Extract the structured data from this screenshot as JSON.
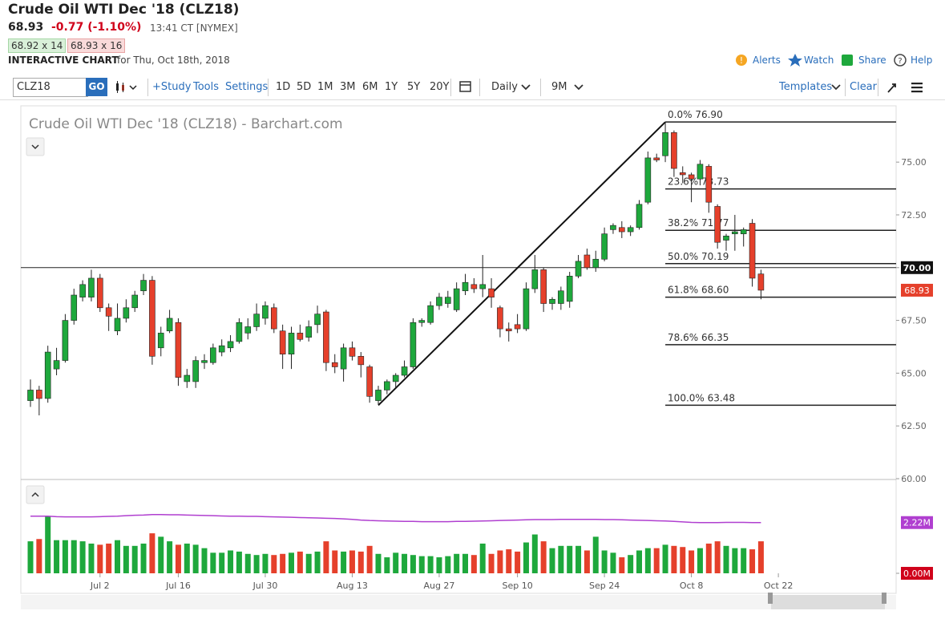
{
  "header": {
    "title": "Crude Oil WTI Dec '18 (CLZ18)",
    "last": "68.93",
    "change": "-0.77 (-1.10%)",
    "time": "13:41 CT [NYMEX]",
    "bid": "68.92 x 14",
    "ask": "68.93 x 16",
    "section": "INTERACTIVE CHART",
    "date": "for Thu, Oct 18th, 2018",
    "actions": [
      "Alerts",
      "Watch",
      "Share",
      "Help"
    ]
  },
  "toolbar": {
    "symbol": "CLZ18",
    "go": "GO",
    "links": [
      "+Study",
      "Tools",
      "Settings"
    ],
    "periods": [
      "1D",
      "5D",
      "1M",
      "3M",
      "6M",
      "1Y",
      "5Y",
      "20Y"
    ],
    "interval": "Daily",
    "range": "9M",
    "templates": "Templates",
    "clear": "Clear"
  },
  "chart_data": {
    "type": "candlestick",
    "title": "Crude Oil WTI Dec '18 (CLZ18) - Barchart.com",
    "up_color": "#1ea83c",
    "down_color": "#e5402b",
    "candles": [
      [
        63.7,
        64.7,
        63.4,
        64.2
      ],
      [
        64.2,
        64.4,
        63.0,
        63.8
      ],
      [
        63.8,
        66.3,
        63.6,
        66.0
      ],
      [
        65.2,
        66.2,
        64.9,
        65.6
      ],
      [
        65.6,
        67.8,
        65.5,
        67.5
      ],
      [
        67.5,
        69.0,
        67.3,
        68.7
      ],
      [
        68.6,
        69.4,
        68.4,
        69.2
      ],
      [
        68.6,
        69.9,
        68.4,
        69.5
      ],
      [
        69.5,
        69.7,
        67.9,
        68.1
      ],
      [
        68.1,
        68.3,
        67.0,
        67.7
      ],
      [
        67.0,
        68.3,
        66.8,
        67.6
      ],
      [
        67.6,
        68.5,
        67.4,
        68.1
      ],
      [
        68.1,
        68.9,
        67.9,
        68.7
      ],
      [
        68.9,
        69.7,
        68.7,
        69.4
      ],
      [
        69.4,
        69.6,
        65.4,
        65.8
      ],
      [
        66.2,
        67.2,
        65.8,
        66.9
      ],
      [
        67.0,
        68.0,
        66.9,
        67.6
      ],
      [
        67.4,
        67.6,
        64.4,
        64.8
      ],
      [
        64.6,
        65.2,
        64.3,
        64.9
      ],
      [
        64.6,
        65.8,
        64.3,
        65.6
      ],
      [
        65.5,
        65.9,
        65.2,
        65.6
      ],
      [
        65.5,
        66.4,
        65.4,
        66.2
      ],
      [
        66.0,
        66.6,
        65.8,
        66.3
      ],
      [
        66.2,
        66.8,
        66.0,
        66.5
      ],
      [
        66.5,
        67.6,
        66.4,
        67.4
      ],
      [
        66.9,
        67.6,
        66.6,
        67.2
      ],
      [
        67.2,
        68.3,
        67.0,
        67.8
      ],
      [
        67.6,
        68.4,
        67.3,
        68.2
      ],
      [
        68.1,
        68.3,
        66.9,
        67.1
      ],
      [
        67.0,
        67.3,
        65.2,
        65.9
      ],
      [
        65.9,
        67.2,
        65.2,
        66.9
      ],
      [
        66.9,
        67.3,
        66.5,
        66.6
      ],
      [
        66.7,
        67.5,
        66.5,
        67.2
      ],
      [
        67.3,
        68.2,
        66.9,
        67.8
      ],
      [
        67.9,
        68.0,
        65.1,
        65.5
      ],
      [
        65.5,
        65.9,
        65.0,
        65.3
      ],
      [
        65.2,
        66.4,
        64.6,
        66.2
      ],
      [
        66.2,
        66.5,
        65.6,
        65.8
      ],
      [
        65.8,
        66.0,
        64.8,
        65.4
      ],
      [
        65.3,
        65.4,
        63.6,
        63.9
      ],
      [
        63.7,
        64.4,
        63.5,
        64.2
      ],
      [
        64.2,
        64.7,
        64.0,
        64.6
      ],
      [
        64.6,
        65.0,
        64.3,
        64.9
      ],
      [
        64.9,
        65.6,
        64.8,
        65.3
      ],
      [
        65.3,
        67.6,
        65.2,
        67.4
      ],
      [
        67.4,
        67.6,
        67.2,
        67.5
      ],
      [
        67.4,
        68.4,
        67.3,
        68.2
      ],
      [
        68.2,
        68.8,
        68.0,
        68.6
      ],
      [
        68.3,
        68.9,
        68.1,
        68.6
      ],
      [
        68.0,
        69.3,
        67.9,
        69.0
      ],
      [
        68.9,
        69.7,
        68.7,
        69.3
      ],
      [
        69.2,
        69.5,
        68.8,
        69.0
      ],
      [
        69.0,
        70.6,
        68.6,
        69.2
      ],
      [
        69.0,
        69.5,
        68.1,
        68.6
      ],
      [
        68.1,
        68.2,
        66.7,
        67.1
      ],
      [
        67.1,
        67.4,
        66.5,
        67.0
      ],
      [
        67.3,
        67.8,
        66.9,
        67.1
      ],
      [
        67.1,
        69.3,
        67.0,
        69.0
      ],
      [
        69.0,
        70.6,
        68.8,
        69.9
      ],
      [
        69.9,
        70.0,
        67.9,
        68.3
      ],
      [
        68.3,
        68.6,
        68.0,
        68.5
      ],
      [
        68.3,
        69.1,
        68.0,
        68.9
      ],
      [
        68.4,
        69.8,
        68.1,
        69.6
      ],
      [
        69.6,
        70.6,
        69.5,
        70.3
      ],
      [
        70.6,
        70.9,
        69.9,
        70.0
      ],
      [
        70.0,
        70.8,
        69.8,
        70.4
      ],
      [
        70.4,
        71.9,
        70.3,
        71.6
      ],
      [
        71.8,
        72.1,
        71.6,
        72.0
      ],
      [
        71.9,
        72.2,
        71.4,
        71.7
      ],
      [
        71.7,
        72.0,
        71.5,
        71.9
      ],
      [
        71.9,
        73.2,
        71.8,
        73.0
      ],
      [
        73.1,
        75.5,
        73.0,
        75.2
      ],
      [
        75.2,
        75.4,
        75.0,
        75.1
      ],
      [
        75.3,
        76.9,
        75.0,
        76.4
      ],
      [
        76.4,
        76.5,
        74.3,
        74.7
      ],
      [
        74.5,
        74.8,
        74.0,
        74.4
      ],
      [
        74.4,
        74.5,
        73.1,
        74.2
      ],
      [
        74.2,
        75.1,
        73.9,
        74.9
      ],
      [
        74.8,
        74.9,
        72.6,
        73.1
      ],
      [
        72.9,
        73.0,
        70.9,
        71.2
      ],
      [
        71.3,
        71.6,
        70.8,
        71.5
      ],
      [
        71.6,
        72.5,
        70.8,
        71.7
      ],
      [
        71.6,
        71.9,
        71.0,
        71.8
      ],
      [
        72.1,
        72.3,
        69.1,
        69.5
      ],
      [
        69.7,
        69.9,
        68.5,
        68.93
      ]
    ],
    "xlim": [
      -1,
      96
    ],
    "xticks": [
      {
        "value": 8,
        "label": "Jul 2"
      },
      {
        "value": 17,
        "label": "Jul 16"
      },
      {
        "value": 27,
        "label": "Jul 30"
      },
      {
        "value": 37,
        "label": "Aug 13"
      },
      {
        "value": 47,
        "label": "Aug 27"
      },
      {
        "value": 56,
        "label": "Sep 10"
      },
      {
        "value": 66,
        "label": "Sep 24"
      },
      {
        "value": 76,
        "label": "Oct 8"
      },
      {
        "value": 86,
        "label": "Oct 22"
      }
    ],
    "ylim": [
      60,
      77.4
    ],
    "yticks": [
      {
        "value": 60,
        "label": "60.00"
      },
      {
        "value": 62.5,
        "label": "62.50"
      },
      {
        "value": 65,
        "label": "65.00"
      },
      {
        "value": 67.5,
        "label": "67.50"
      },
      {
        "value": 70,
        "label": "70.00"
      },
      {
        "value": 72.5,
        "label": "72.50"
      },
      {
        "value": 75,
        "label": "75.00"
      }
    ],
    "hline": {
      "value": 70,
      "label": "70.00"
    },
    "last_price": {
      "value": 68.93,
      "label": "68.93"
    },
    "trendline": {
      "x": [
        40,
        73
      ],
      "y": [
        63.48,
        76.9
      ]
    },
    "fib_start": 73,
    "fib_levels": [
      {
        "value": 76.9,
        "label": "0.0% 76.90"
      },
      {
        "value": 73.73,
        "label": "23.6% 73.73"
      },
      {
        "value": 71.77,
        "label": "38.2% 71.77"
      },
      {
        "value": 70.19,
        "label": "50.0% 70.19"
      },
      {
        "value": 68.6,
        "label": "61.8% 68.60"
      },
      {
        "value": 66.35,
        "label": "78.6% 66.35"
      },
      {
        "value": 63.48,
        "label": "100.0% 63.48"
      }
    ],
    "volume": [
      1.4,
      1.5,
      2.5,
      1.45,
      1.45,
      1.45,
      1.4,
      1.3,
      1.25,
      1.3,
      1.45,
      1.2,
      1.2,
      1.3,
      1.75,
      1.6,
      1.4,
      1.25,
      1.3,
      1.25,
      1.1,
      0.9,
      0.9,
      1.0,
      0.95,
      0.85,
      0.8,
      0.85,
      0.8,
      0.85,
      0.9,
      0.95,
      0.85,
      0.95,
      1.4,
      1.0,
      0.95,
      1.0,
      0.95,
      1.2,
      0.85,
      0.7,
      0.9,
      0.85,
      0.8,
      0.75,
      0.75,
      0.7,
      0.75,
      0.85,
      0.85,
      0.8,
      1.3,
      0.85,
      1.0,
      1.05,
      0.95,
      1.35,
      1.7,
      1.4,
      1.1,
      1.2,
      1.2,
      1.2,
      1.0,
      1.6,
      1.0,
      0.9,
      0.7,
      0.8,
      1.0,
      1.1,
      1.1,
      1.25,
      1.2,
      1.15,
      1.0,
      1.1,
      1.3,
      1.4,
      1.2,
      1.1,
      1.1,
      1.05,
      1.4
    ],
    "volume_ma": {
      "color": "#b03fd0",
      "values": [
        2.5,
        2.5,
        2.5,
        2.48,
        2.47,
        2.47,
        2.47,
        2.47,
        2.48,
        2.49,
        2.5,
        2.52,
        2.54,
        2.55,
        2.57,
        2.57,
        2.56,
        2.56,
        2.55,
        2.54,
        2.53,
        2.52,
        2.51,
        2.5,
        2.5,
        2.49,
        2.49,
        2.48,
        2.47,
        2.46,
        2.45,
        2.44,
        2.43,
        2.42,
        2.41,
        2.4,
        2.38,
        2.36,
        2.33,
        2.31,
        2.3,
        2.29,
        2.28,
        2.27,
        2.27,
        2.26,
        2.26,
        2.26,
        2.26,
        2.27,
        2.27,
        2.28,
        2.29,
        2.3,
        2.31,
        2.32,
        2.33,
        2.34,
        2.35,
        2.35,
        2.35,
        2.36,
        2.36,
        2.36,
        2.36,
        2.36,
        2.35,
        2.35,
        2.34,
        2.33,
        2.32,
        2.31,
        2.3,
        2.29,
        2.27,
        2.25,
        2.23,
        2.22,
        2.22,
        2.22,
        2.23,
        2.23,
        2.23,
        2.22,
        2.22
      ],
      "last_label": "2.22M"
    },
    "y2lim": [
      0,
      4
    ],
    "y2ticks": [
      {
        "value": 0,
        "label": "0.00M"
      }
    ]
  }
}
